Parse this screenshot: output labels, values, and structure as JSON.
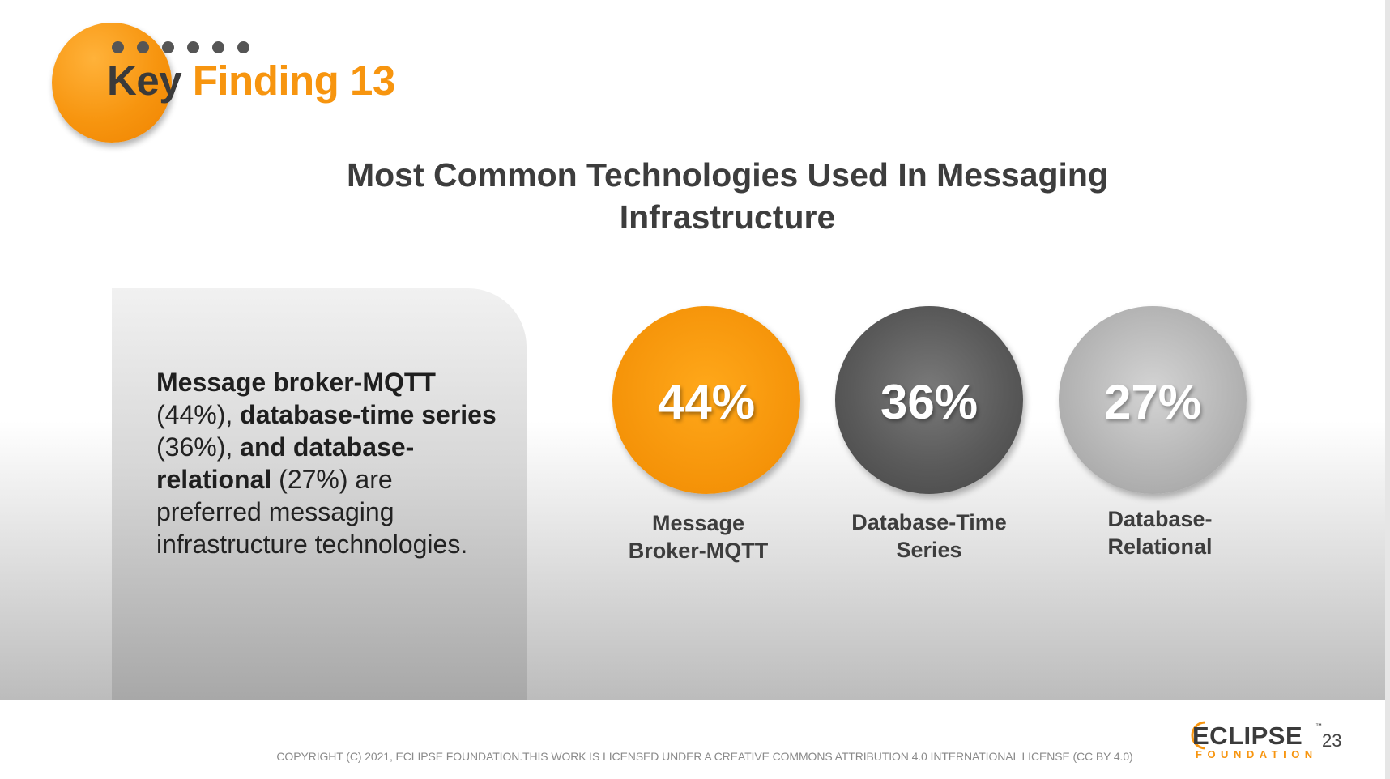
{
  "header": {
    "key_word": "Key",
    "finding_word": "Finding 13"
  },
  "title": {
    "line1": "Most Common Technologies Used In Messaging",
    "line2": "Infrastructure"
  },
  "summary": {
    "s1_bold": "Message broker-MQTT",
    "s2": " (44%), ",
    "s3_bold": "database-time series",
    "s4": " (36%), ",
    "s5_bold": "and database-relational",
    "s6": " (27%) are preferred messaging infrastructure technologies."
  },
  "stats": [
    {
      "value": "44%",
      "label_line1": "Message",
      "label_line2": "Broker-MQTT",
      "color": "#f7950f"
    },
    {
      "value": "36%",
      "label_line1": "Database-Time",
      "label_line2": "Series",
      "color": "#5a5a5a"
    },
    {
      "value": "27%",
      "label_line1": "Database-",
      "label_line2": "Relational",
      "color": "#b6b6b6"
    }
  ],
  "footer": {
    "copyright": "COPYRIGHT (C) 2021, ECLIPSE FOUNDATION.THIS WORK IS LICENSED UNDER A CREATIVE COMMONS ATTRIBUTION 4.0 INTERNATIONAL LICENSE (CC BY 4.0)",
    "logo_word": "ECLIPSE",
    "logo_tm": "™",
    "logo_sub": "FOUNDATION",
    "page_number": "23"
  },
  "colors": {
    "accent": "#f7950f",
    "dark_text": "#3d3d3d"
  }
}
